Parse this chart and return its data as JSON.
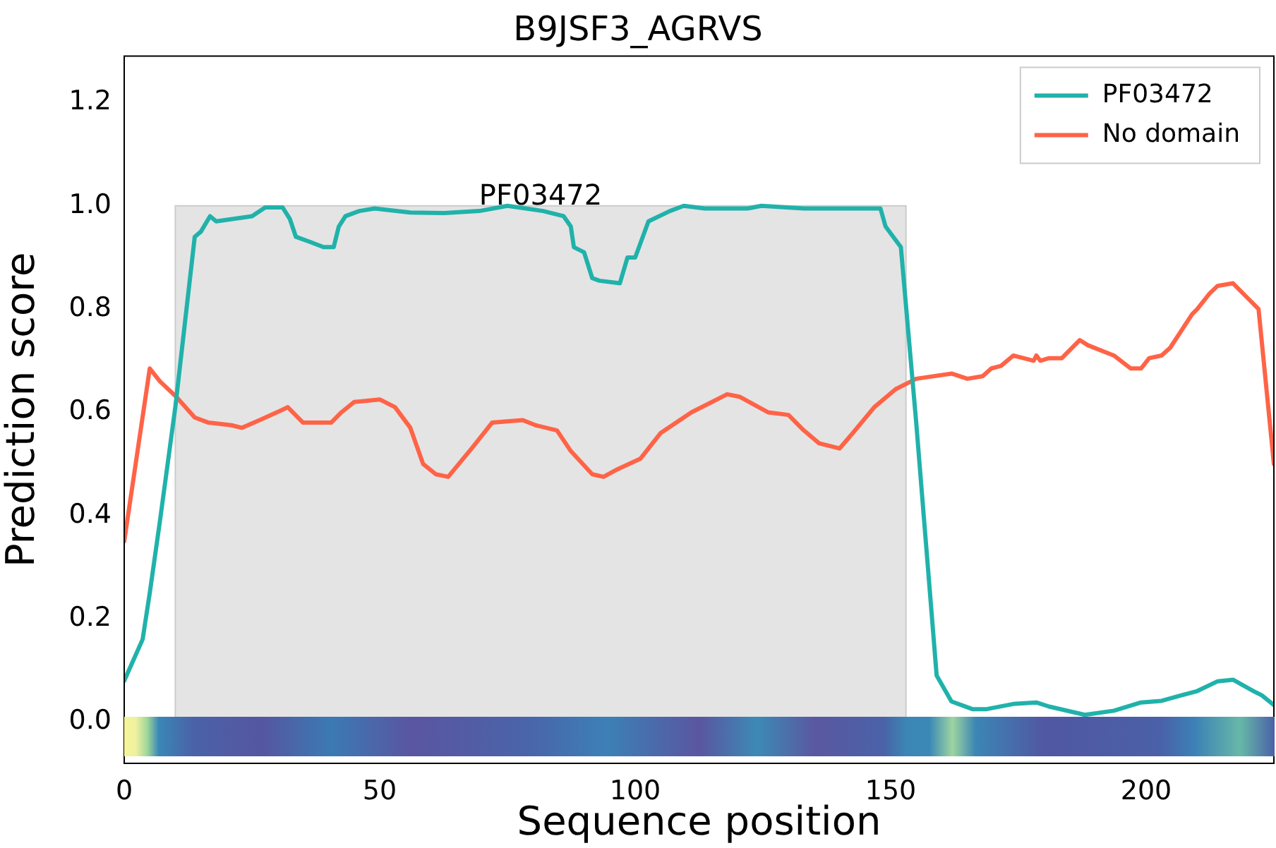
{
  "chart_data": {
    "type": "line",
    "title": "B9JSF3_AGRVS",
    "xlabel": "Sequence position",
    "ylabel": "Prediction score",
    "xlim": [
      0,
      225
    ],
    "xticks": [
      0,
      50,
      100,
      150,
      200
    ],
    "ylim": [
      -0.08,
      1.29
    ],
    "yticks": [
      {
        "value": 0,
        "label": "0.0"
      },
      {
        "value": 0.2,
        "label": "0.2"
      },
      {
        "value": 0.4,
        "label": "0.4"
      },
      {
        "value": 0.6,
        "label": "0.6"
      },
      {
        "value": 0.8,
        "label": "0.8"
      },
      {
        "value": 1,
        "label": "1.0"
      },
      {
        "value": 1.2,
        "label": "1.2"
      }
    ],
    "grid": false,
    "legend": "top right",
    "marker": "none",
    "line_style": "solid",
    "bands": [
      {
        "axis": "x",
        "from": 10,
        "to": 153,
        "label": "PF03472",
        "color": "#e4e4e4"
      }
    ],
    "series": [
      {
        "name": "PF03472",
        "color": "#20b2aa",
        "x": [
          0,
          3.6,
          5,
          7,
          10,
          13.8,
          15,
          16.8,
          18,
          25,
          27.6,
          31,
          32.4,
          33.6,
          36.4,
          39,
          41,
          42,
          43.3,
          46,
          49,
          56,
          62.6,
          69.5,
          75,
          82,
          86,
          87.4,
          88,
          90,
          91.6,
          93,
          97,
          98.5,
          100,
          102.6,
          106.8,
          109.5,
          113.6,
          122,
          124.7,
          133,
          141,
          148,
          149,
          152,
          155,
          159,
          161.9,
          166,
          168.8,
          174,
          178.5,
          181,
          188,
          193.7,
          199,
          203,
          207,
          210,
          214,
          217,
          221,
          222.6,
          225
        ],
        "values": [
          0.08,
          0.16,
          0.25,
          0.39,
          0.61,
          0.94,
          0.95,
          0.98,
          0.97,
          0.98,
          0.997,
          0.997,
          0.975,
          0.94,
          0.93,
          0.92,
          0.92,
          0.96,
          0.98,
          0.99,
          0.995,
          0.987,
          0.986,
          0.99,
          1.0,
          0.99,
          0.98,
          0.96,
          0.92,
          0.91,
          0.86,
          0.855,
          0.85,
          0.9,
          0.9,
          0.97,
          0.99,
          1.0,
          0.995,
          0.995,
          1.0,
          0.995,
          0.995,
          0.995,
          0.96,
          0.92,
          0.58,
          0.09,
          0.04,
          0.025,
          0.025,
          0.035,
          0.038,
          0.03,
          0.014,
          0.022,
          0.038,
          0.041,
          0.052,
          0.06,
          0.079,
          0.082,
          0.06,
          0.052,
          0.033
        ]
      },
      {
        "name": "No domain",
        "color": "#ff6347",
        "x": [
          0,
          5,
          7,
          10.2,
          13.8,
          16.5,
          21,
          23,
          26.5,
          31,
          32,
          35,
          40.5,
          42.5,
          45,
          50,
          53,
          56,
          58.5,
          61,
          63.4,
          68,
          72,
          78,
          80.5,
          84.7,
          87.4,
          91.6,
          93.8,
          96.6,
          101,
          105,
          111,
          118,
          120.5,
          126,
          130,
          133,
          136,
          140,
          142.6,
          146.8,
          151,
          155,
          162,
          165,
          168,
          169.7,
          171.6,
          174,
          178,
          178.5,
          179.3,
          181,
          183.5,
          187,
          188.6,
          193.7,
          197,
          199,
          200.6,
          203,
          204.7,
          209,
          210,
          212.4,
          214,
          217,
          220,
          222,
          225
        ],
        "values": [
          0.35,
          0.685,
          0.66,
          0.63,
          0.59,
          0.58,
          0.575,
          0.57,
          0.585,
          0.605,
          0.61,
          0.58,
          0.58,
          0.6,
          0.62,
          0.625,
          0.61,
          0.57,
          0.5,
          0.48,
          0.475,
          0.53,
          0.58,
          0.585,
          0.575,
          0.565,
          0.525,
          0.48,
          0.475,
          0.49,
          0.51,
          0.56,
          0.6,
          0.635,
          0.63,
          0.6,
          0.595,
          0.565,
          0.54,
          0.53,
          0.56,
          0.61,
          0.645,
          0.665,
          0.675,
          0.665,
          0.67,
          0.685,
          0.69,
          0.71,
          0.7,
          0.71,
          0.7,
          0.705,
          0.705,
          0.74,
          0.73,
          0.71,
          0.685,
          0.685,
          0.705,
          0.71,
          0.725,
          0.79,
          0.8,
          0.83,
          0.845,
          0.85,
          0.82,
          0.8,
          0.5
        ]
      }
    ]
  }
}
